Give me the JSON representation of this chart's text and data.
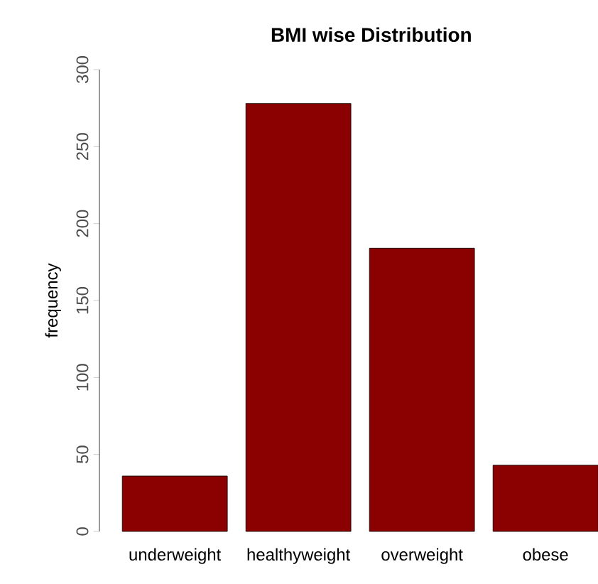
{
  "chart_data": {
    "type": "bar",
    "title": "BMI wise Distribution",
    "ylabel": "frequency",
    "categories": [
      "underweight",
      "healthyweight",
      "overweight",
      "obese"
    ],
    "values": [
      36,
      278,
      184,
      43
    ],
    "color": "#8b0000",
    "ylim": [
      0,
      300
    ],
    "yticks": [
      0,
      50,
      100,
      150,
      200,
      250,
      300
    ],
    "grid": false
  }
}
